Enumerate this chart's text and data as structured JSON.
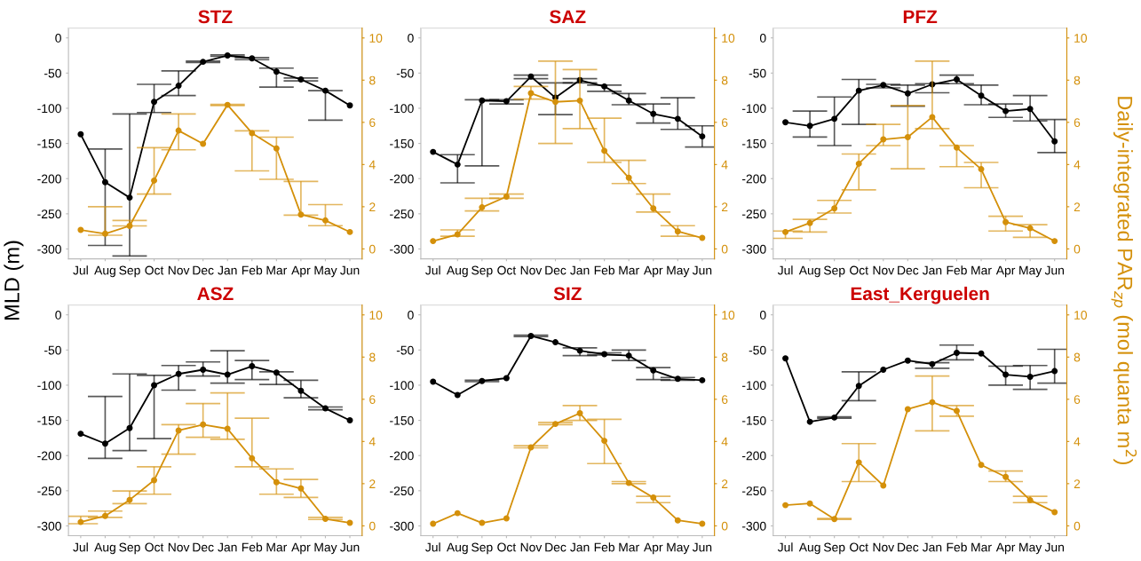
{
  "chart_data": [
    {
      "type": "line",
      "title": "STZ",
      "ylabel": "MLD (m)",
      "categories": [
        "Jul",
        "Aug",
        "Sep",
        "Oct",
        "Nov",
        "Dec",
        "Jan",
        "Feb",
        "Mar",
        "Apr",
        "May",
        "Jun"
      ],
      "ylim": [
        -314,
        14
      ],
      "yticks": [
        -300,
        -250,
        -200,
        -150,
        -100,
        -50,
        0
      ],
      "y2lim": [
        -0.47,
        10.47
      ],
      "y2ticks": [
        0,
        2,
        4,
        6,
        8,
        10
      ],
      "marker": "circle",
      "grid": false,
      "series": [
        {
          "color": "#000000",
          "values": [
            -137,
            -205,
            -227,
            -91,
            -68,
            -34,
            -25,
            -29,
            -48,
            -59,
            -75,
            -96
          ],
          "errors": [
            null,
            [
              -295,
              -158
            ],
            [
              -310,
              -108
            ],
            [
              -106,
              -66
            ],
            [
              -82,
              -47
            ],
            [
              -35,
              -33
            ],
            [
              -26,
              -24
            ],
            [
              -31,
              -28
            ],
            [
              -70,
              -43
            ],
            [
              -61,
              -57
            ],
            [
              -117,
              -75
            ],
            null
          ]
        },
        {
          "color": "#d4900a",
          "axis": "y2",
          "values": [
            0.9,
            0.72,
            1.09,
            3.24,
            5.61,
            4.98,
            6.83,
            5.49,
            4.76,
            1.63,
            1.35,
            0.8
          ],
          "errors": [
            null,
            [
              0.65,
              2.0
            ],
            [
              1.09,
              1.35
            ],
            [
              2.6,
              4.8
            ],
            [
              4.7,
              6.4
            ],
            null,
            [
              6.8,
              6.85
            ],
            [
              3.7,
              5.6
            ],
            [
              3.3,
              5.3
            ],
            [
              1.6,
              3.2
            ],
            [
              1.1,
              2.1
            ],
            null
          ]
        }
      ]
    },
    {
      "type": "line",
      "title": "SAZ",
      "categories": [
        "Jul",
        "Aug",
        "Sep",
        "Oct",
        "Nov",
        "Dec",
        "Jan",
        "Feb",
        "Mar",
        "Apr",
        "May",
        "Jun"
      ],
      "ylim": [
        -314,
        14
      ],
      "yticks": [
        -300,
        -250,
        -200,
        -150,
        -100,
        -50,
        0
      ],
      "y2lim": [
        -0.47,
        10.47
      ],
      "y2ticks": [
        0,
        2,
        4,
        6,
        8,
        10
      ],
      "marker": "circle",
      "grid": false,
      "series": [
        {
          "color": "#000000",
          "values": [
            -162,
            -180,
            -89,
            -90,
            -55,
            -85,
            -60,
            -69,
            -89,
            -108,
            -115,
            -140
          ],
          "errors": [
            null,
            [
              -206,
              -166
            ],
            [
              -182,
              -88
            ],
            [
              -94,
              -88
            ],
            [
              -58,
              -53
            ],
            [
              -109,
              -64
            ],
            [
              -64,
              -58
            ],
            [
              -76,
              -67
            ],
            [
              -95,
              -79
            ],
            [
              -121,
              -94
            ],
            [
              -130,
              -85
            ],
            [
              -155,
              -125
            ]
          ]
        },
        {
          "color": "#d4900a",
          "axis": "y2",
          "values": [
            0.37,
            0.69,
            1.97,
            2.48,
            7.38,
            6.97,
            7.03,
            4.65,
            3.37,
            1.92,
            0.83,
            0.52
          ],
          "errors": [
            null,
            [
              0.6,
              0.9
            ],
            [
              1.8,
              2.4
            ],
            [
              2.4,
              2.6
            ],
            [
              7.1,
              7.7
            ],
            [
              5.0,
              8.9
            ],
            [
              5.7,
              8.5
            ],
            [
              4.1,
              6.2
            ],
            [
              3.1,
              4.2
            ],
            [
              1.75,
              2.6
            ],
            [
              0.6,
              1.1
            ],
            null
          ]
        }
      ]
    },
    {
      "type": "line",
      "title": "PFZ",
      "y2label": "Daily-integrated PAR$_{zp}$ (mol quanta m$^{2}$)",
      "categories": [
        "Jul",
        "Aug",
        "Sep",
        "Oct",
        "Nov",
        "Dec",
        "Jan",
        "Feb",
        "Mar",
        "Apr",
        "May",
        "Jun"
      ],
      "ylim": [
        -314,
        14
      ],
      "yticks": [
        -300,
        -250,
        -200,
        -150,
        -100,
        -50,
        0
      ],
      "y2lim": [
        -0.47,
        10.47
      ],
      "y2ticks": [
        0,
        2,
        4,
        6,
        8,
        10
      ],
      "marker": "circle",
      "grid": false,
      "series": [
        {
          "color": "#000000",
          "values": [
            -120,
            -125,
            -115,
            -75,
            -67,
            -79,
            -66,
            -59,
            -82,
            -104,
            -101,
            -147
          ],
          "errors": [
            null,
            [
              -141,
              -104
            ],
            [
              -153,
              -84
            ],
            [
              -123,
              -59
            ],
            [
              -71,
              -66
            ],
            [
              -97,
              -67
            ],
            [
              -78,
              -65
            ],
            [
              -65,
              -53
            ],
            [
              -95,
              -67
            ],
            [
              -113,
              -94
            ],
            [
              -118,
              -82
            ],
            [
              -163,
              -116
            ]
          ]
        },
        {
          "color": "#d4900a",
          "axis": "y2",
          "values": [
            0.8,
            1.23,
            1.92,
            4.04,
            5.19,
            5.3,
            6.25,
            4.8,
            3.78,
            1.27,
            0.98,
            0.37
          ],
          "errors": [
            [
              0.5,
              0.85
            ],
            [
              0.8,
              1.4
            ],
            [
              1.7,
              2.3
            ],
            [
              2.8,
              4.5
            ],
            [
              4.9,
              5.9
            ],
            [
              3.8,
              6.8
            ],
            [
              5.7,
              8.9
            ],
            [
              3.9,
              4.9
            ],
            [
              2.9,
              4.1
            ],
            [
              0.85,
              1.55
            ],
            [
              0.55,
              1.15
            ],
            null
          ]
        }
      ]
    },
    {
      "type": "line",
      "title": "ASZ",
      "categories": [
        "Jul",
        "Aug",
        "Sep",
        "Oct",
        "Nov",
        "Dec",
        "Jan",
        "Feb",
        "Mar",
        "Apr",
        "May",
        "Jun"
      ],
      "ylim": [
        -314,
        14
      ],
      "yticks": [
        -300,
        -250,
        -200,
        -150,
        -100,
        -50,
        0
      ],
      "y2lim": [
        -0.47,
        10.47
      ],
      "y2ticks": [
        0,
        2,
        4,
        6,
        8,
        10
      ],
      "marker": "circle",
      "grid": false,
      "series": [
        {
          "color": "#000000",
          "values": [
            -169,
            -183,
            -161,
            -100,
            -84,
            -78,
            -85,
            -73,
            -82,
            -108,
            -133,
            -150
          ],
          "errors": [
            null,
            [
              -204,
              -116
            ],
            [
              -193,
              -84
            ],
            [
              -176,
              -86
            ],
            [
              -107,
              -72
            ],
            [
              -87,
              -67
            ],
            [
              -97,
              -51
            ],
            [
              -92,
              -65
            ],
            [
              -99,
              -81
            ],
            [
              -118,
              -93
            ],
            [
              -135,
              -131
            ],
            null
          ]
        },
        {
          "color": "#d4900a",
          "axis": "y2",
          "values": [
            0.18,
            0.47,
            1.23,
            2.16,
            4.52,
            4.8,
            4.6,
            3.2,
            2.07,
            1.77,
            0.33,
            0.14
          ],
          "errors": [
            [
              0.1,
              0.45
            ],
            [
              0.4,
              0.7
            ],
            [
              1.05,
              1.65
            ],
            [
              1.5,
              2.8
            ],
            [
              3.4,
              4.8
            ],
            [
              4.2,
              5.8
            ],
            [
              4.1,
              6.3
            ],
            [
              2.8,
              5.1
            ],
            [
              1.5,
              2.7
            ],
            [
              1.35,
              2.2
            ],
            [
              0.3,
              0.4
            ],
            null
          ]
        }
      ]
    },
    {
      "type": "line",
      "title": "SIZ",
      "categories": [
        "Jul",
        "Aug",
        "Sep",
        "Oct",
        "Nov",
        "Dec",
        "Jan",
        "Feb",
        "Mar",
        "Apr",
        "May",
        "Jun"
      ],
      "ylim": [
        -314,
        14
      ],
      "yticks": [
        -300,
        -250,
        -200,
        -150,
        -100,
        -50,
        0
      ],
      "y2lim": [
        -0.47,
        10.47
      ],
      "y2ticks": [
        0,
        2,
        4,
        6,
        8,
        10
      ],
      "marker": "circle",
      "grid": false,
      "series": [
        {
          "color": "#000000",
          "values": [
            -95,
            -114,
            -94,
            -90,
            -30,
            -39,
            -51,
            -56,
            -58,
            -79,
            -91,
            -93
          ],
          "errors": [
            null,
            null,
            [
              -95,
              -93
            ],
            null,
            [
              -31,
              -29
            ],
            null,
            [
              -58,
              -47
            ],
            [
              -57,
              -54
            ],
            [
              -65,
              -50
            ],
            [
              -92,
              -75
            ],
            [
              -93,
              -89
            ],
            null
          ]
        },
        {
          "color": "#d4900a",
          "axis": "y2",
          "values": [
            0.1,
            0.6,
            0.14,
            0.35,
            3.72,
            4.83,
            5.34,
            4.03,
            2.03,
            1.34,
            0.26,
            0.1
          ],
          "errors": [
            null,
            null,
            null,
            null,
            [
              3.7,
              3.8
            ],
            [
              4.8,
              4.9
            ],
            [
              5.0,
              5.7
            ],
            [
              2.95,
              5.05
            ],
            [
              2.0,
              2.1
            ],
            [
              1.1,
              1.4
            ],
            null,
            null
          ]
        }
      ]
    },
    {
      "type": "line",
      "title": "East_Kerguelen",
      "categories": [
        "Jul",
        "Aug",
        "Sep",
        "Oct",
        "Nov",
        "Dec",
        "Jan",
        "Feb",
        "Mar",
        "Apr",
        "May",
        "Jun"
      ],
      "ylim": [
        -314,
        14
      ],
      "yticks": [
        -300,
        -250,
        -200,
        -150,
        -100,
        -50,
        0
      ],
      "y2lim": [
        -0.47,
        10.47
      ],
      "y2ticks": [
        0,
        2,
        4,
        6,
        8,
        10
      ],
      "marker": "circle",
      "grid": false,
      "series": [
        {
          "color": "#000000",
          "values": [
            -62,
            -152,
            -146,
            -101,
            -78,
            -65,
            -70,
            -54,
            -55,
            -85,
            -88,
            -80
          ],
          "errors": [
            null,
            null,
            [
              -147,
              -145
            ],
            [
              -122,
              -81
            ],
            null,
            null,
            [
              -76,
              -68
            ],
            [
              -64,
              -43
            ],
            null,
            [
              -100,
              -73
            ],
            [
              -106,
              -72
            ],
            [
              -97,
              -49
            ]
          ]
        },
        {
          "color": "#d4900a",
          "axis": "y2",
          "values": [
            0.98,
            1.06,
            0.32,
            3.01,
            1.91,
            5.53,
            5.86,
            5.45,
            2.89,
            2.32,
            1.22,
            0.65
          ],
          "errors": [
            null,
            null,
            [
              0.3,
              0.35
            ],
            [
              2.1,
              3.9
            ],
            null,
            null,
            [
              4.5,
              7.1
            ],
            [
              5.2,
              5.7
            ],
            null,
            [
              2.1,
              2.6
            ],
            [
              1.1,
              1.4
            ],
            null
          ]
        }
      ]
    }
  ]
}
